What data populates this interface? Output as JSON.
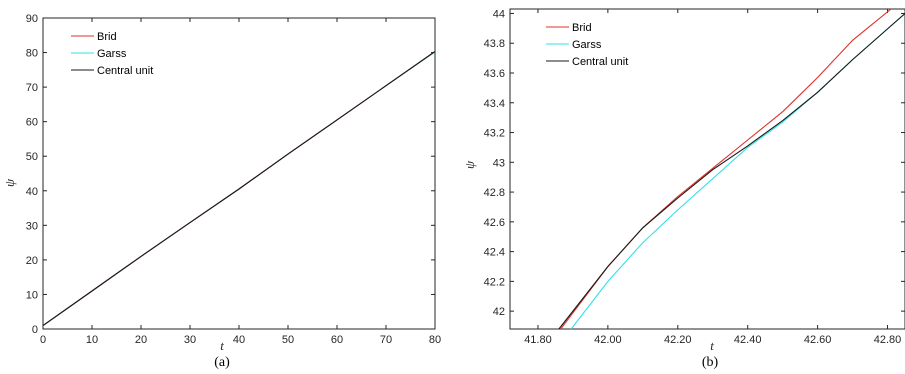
{
  "chart_data": [
    {
      "type": "line",
      "caption": "(a)",
      "xlabel": "t",
      "ylabel": "ψ",
      "xlim": [
        0,
        80
      ],
      "ylim": [
        0,
        90
      ],
      "xticks": [
        "0",
        "10",
        "20",
        "30",
        "40",
        "50",
        "60",
        "70",
        "80"
      ],
      "yticks": [
        "0",
        "10",
        "20",
        "30",
        "40",
        "50",
        "60",
        "70",
        "80",
        "90"
      ],
      "grid": false,
      "legend_position": "top-left",
      "series": [
        {
          "name": "Brid",
          "color": "#e0302a",
          "x": [
            0,
            10,
            20,
            30,
            40,
            50,
            60,
            70,
            80
          ],
          "y": [
            1.0,
            11.0,
            21.0,
            30.8,
            40.5,
            50.6,
            60.5,
            70.4,
            80.3
          ]
        },
        {
          "name": "Garss",
          "color": "#33e0e8",
          "x": [
            0,
            10,
            20,
            30,
            40,
            50,
            60,
            70,
            80
          ],
          "y": [
            1.0,
            11.0,
            21.0,
            30.8,
            40.5,
            50.6,
            60.5,
            70.4,
            80.2
          ]
        },
        {
          "name": "Central unit",
          "color": "#1a1a1a",
          "x": [
            0,
            10,
            20,
            30,
            40,
            50,
            60,
            70,
            80
          ],
          "y": [
            1.0,
            11.0,
            21.0,
            30.8,
            40.5,
            50.6,
            60.5,
            70.4,
            80.3
          ]
        }
      ]
    },
    {
      "type": "line",
      "caption": "(b)",
      "xlabel": "t",
      "ylabel": "ψ",
      "xlim": [
        41.72,
        42.85
      ],
      "ylim": [
        41.88,
        44.03
      ],
      "xticks": [
        "41.80",
        "42.00",
        "42.20",
        "42.40",
        "42.60",
        "42.80"
      ],
      "yticks": [
        "42",
        "42.2",
        "42.4",
        "42.6",
        "42.8",
        "43",
        "43.2",
        "43.4",
        "43.6",
        "43.8",
        "44"
      ],
      "grid": false,
      "legend_position": "top-left",
      "series": [
        {
          "name": "Brid",
          "color": "#e0302a",
          "x": [
            41.865,
            42.0,
            42.1,
            42.2,
            42.3,
            42.4,
            42.5,
            42.6,
            42.7,
            42.81
          ],
          "y": [
            41.88,
            42.3,
            42.56,
            42.77,
            42.96,
            43.15,
            43.34,
            43.57,
            43.82,
            44.03
          ]
        },
        {
          "name": "Garss",
          "color": "#33e0e8",
          "x": [
            41.895,
            42.0,
            42.1,
            42.2,
            42.3,
            42.4,
            42.5,
            42.6,
            42.7,
            42.85
          ],
          "y": [
            41.88,
            42.2,
            42.46,
            42.68,
            42.89,
            43.1,
            43.27,
            43.47,
            43.69,
            44.0
          ]
        },
        {
          "name": "Central unit",
          "color": "#1a1a1a",
          "x": [
            41.86,
            42.0,
            42.1,
            42.2,
            42.3,
            42.4,
            42.5,
            42.6,
            42.7,
            42.85
          ],
          "y": [
            41.88,
            42.3,
            42.56,
            42.76,
            42.95,
            43.11,
            43.28,
            43.47,
            43.69,
            44.0
          ]
        }
      ]
    }
  ]
}
